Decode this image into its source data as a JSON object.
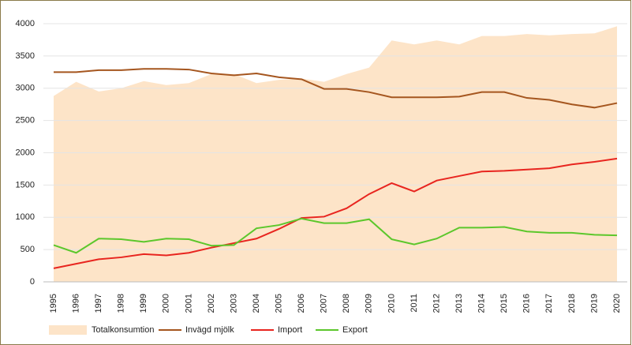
{
  "chart_data": {
    "type": "line",
    "categories": [
      "1995",
      "1996",
      "1997",
      "1998",
      "1999",
      "2000",
      "2001",
      "2002",
      "2003",
      "2004",
      "2005",
      "2006",
      "2007",
      "2008",
      "2009",
      "2010",
      "2011",
      "2012",
      "2013",
      "2014",
      "2015",
      "2016",
      "2017",
      "2018",
      "2019",
      "2020"
    ],
    "series": [
      {
        "name": "Totalkonsumtion",
        "kind": "area",
        "color": "#fde4c8",
        "values": [
          2880,
          3100,
          2950,
          3000,
          3110,
          3050,
          3080,
          3220,
          3220,
          3080,
          3130,
          3150,
          3100,
          3220,
          3320,
          3740,
          3680,
          3740,
          3680,
          3810,
          3810,
          3840,
          3820,
          3840,
          3850,
          3960
        ]
      },
      {
        "name": "Invägd mjölk",
        "kind": "line",
        "color": "#a5561f",
        "values": [
          3250,
          3250,
          3280,
          3280,
          3300,
          3300,
          3290,
          3230,
          3200,
          3230,
          3170,
          3140,
          2990,
          2990,
          2940,
          2860,
          2860,
          2860,
          2870,
          2940,
          2940,
          2850,
          2820,
          2750,
          2700,
          2770
        ]
      },
      {
        "name": "Import",
        "kind": "line",
        "color": "#e8251f",
        "values": [
          210,
          280,
          350,
          380,
          430,
          410,
          450,
          530,
          600,
          670,
          820,
          990,
          1010,
          1140,
          1360,
          1530,
          1400,
          1570,
          1640,
          1710,
          1720,
          1740,
          1760,
          1820,
          1860,
          1910
        ]
      },
      {
        "name": "Export",
        "kind": "line",
        "color": "#5cc72c",
        "values": [
          570,
          450,
          670,
          660,
          620,
          670,
          660,
          560,
          570,
          830,
          880,
          980,
          910,
          910,
          970,
          660,
          580,
          670,
          840,
          840,
          850,
          780,
          760,
          760,
          730,
          720
        ]
      }
    ],
    "ylim": [
      0,
      4250
    ],
    "yticks": [
      0,
      500,
      1000,
      1500,
      2000,
      2500,
      3000,
      3500,
      4000
    ],
    "grid": true
  }
}
